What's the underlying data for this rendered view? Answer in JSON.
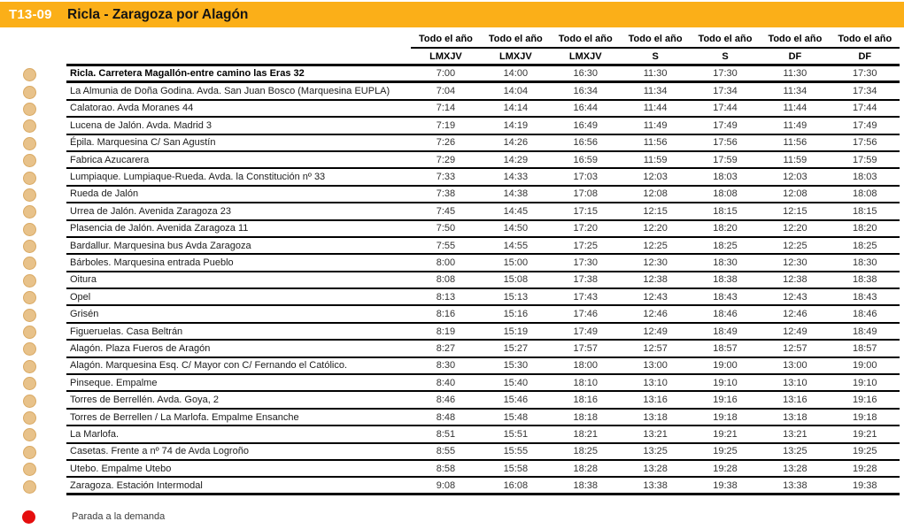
{
  "header": {
    "route_code": "T13-09",
    "title": "Ricla - Zaragoza por Alagón"
  },
  "timetable": {
    "column_headers": [
      {
        "season": "Todo el año",
        "days": "LMXJV"
      },
      {
        "season": "Todo el año",
        "days": "LMXJV"
      },
      {
        "season": "Todo el año",
        "days": "LMXJV"
      },
      {
        "season": "Todo el año",
        "days": "S"
      },
      {
        "season": "Todo el año",
        "days": "S"
      },
      {
        "season": "Todo el año",
        "days": "DF"
      },
      {
        "season": "Todo el año",
        "days": "DF"
      }
    ],
    "rows": [
      {
        "stop": "Ricla. Carretera Magallón-entre camino las Eras 32",
        "emphasis": true,
        "times": [
          "7:00",
          "14:00",
          "16:30",
          "11:30",
          "17:30",
          "11:30",
          "17:30"
        ]
      },
      {
        "stop": "La Almunia de Doña Godina.  Avda. San Juan Bosco (Marquesina EUPLA)",
        "emphasis": false,
        "times": [
          "7:04",
          "14:04",
          "16:34",
          "11:34",
          "17:34",
          "11:34",
          "17:34"
        ]
      },
      {
        "stop": "Calatorao. Avda Moranes 44",
        "emphasis": false,
        "times": [
          "7:14",
          "14:14",
          "16:44",
          "11:44",
          "17:44",
          "11:44",
          "17:44"
        ]
      },
      {
        "stop": "Lucena de Jalón. Avda. Madrid 3",
        "emphasis": false,
        "times": [
          "7:19",
          "14:19",
          "16:49",
          "11:49",
          "17:49",
          "11:49",
          "17:49"
        ]
      },
      {
        "stop": "Épila. Marquesina C/ San Agustín",
        "emphasis": false,
        "times": [
          "7:26",
          "14:26",
          "16:56",
          "11:56",
          "17:56",
          "11:56",
          "17:56"
        ]
      },
      {
        "stop": "Fabrica Azucarera",
        "emphasis": false,
        "times": [
          "7:29",
          "14:29",
          "16:59",
          "11:59",
          "17:59",
          "11:59",
          "17:59"
        ]
      },
      {
        "stop": "Lumpiaque. Lumpiaque-Rueda. Avda. la Constitución nº 33",
        "emphasis": false,
        "times": [
          "7:33",
          "14:33",
          "17:03",
          "12:03",
          "18:03",
          "12:03",
          "18:03"
        ]
      },
      {
        "stop": "Rueda de Jalón",
        "emphasis": false,
        "times": [
          "7:38",
          "14:38",
          "17:08",
          "12:08",
          "18:08",
          "12:08",
          "18:08"
        ]
      },
      {
        "stop": "Urrea de Jalón. Avenida Zaragoza 23",
        "emphasis": false,
        "times": [
          "7:45",
          "14:45",
          "17:15",
          "12:15",
          "18:15",
          "12:15",
          "18:15"
        ]
      },
      {
        "stop": "Plasencia de Jalón. Avenida Zaragoza 11",
        "emphasis": false,
        "times": [
          "7:50",
          "14:50",
          "17:20",
          "12:20",
          "18:20",
          "12:20",
          "18:20"
        ]
      },
      {
        "stop": "Bardallur. Marquesina bus Avda Zaragoza",
        "emphasis": false,
        "times": [
          "7:55",
          "14:55",
          "17:25",
          "12:25",
          "18:25",
          "12:25",
          "18:25"
        ]
      },
      {
        "stop": "Bárboles. Marquesina entrada Pueblo",
        "emphasis": false,
        "times": [
          "8:00",
          "15:00",
          "17:30",
          "12:30",
          "18:30",
          "12:30",
          "18:30"
        ]
      },
      {
        "stop": "Oitura",
        "emphasis": false,
        "times": [
          "8:08",
          "15:08",
          "17:38",
          "12:38",
          "18:38",
          "12:38",
          "18:38"
        ]
      },
      {
        "stop": "Opel",
        "emphasis": false,
        "times": [
          "8:13",
          "15:13",
          "17:43",
          "12:43",
          "18:43",
          "12:43",
          "18:43"
        ]
      },
      {
        "stop": "Grisén",
        "emphasis": false,
        "times": [
          "8:16",
          "15:16",
          "17:46",
          "12:46",
          "18:46",
          "12:46",
          "18:46"
        ]
      },
      {
        "stop": "Figueruelas. Casa Beltrán",
        "emphasis": false,
        "times": [
          "8:19",
          "15:19",
          "17:49",
          "12:49",
          "18:49",
          "12:49",
          "18:49"
        ]
      },
      {
        "stop": "Alagón. Plaza Fueros de Aragón",
        "emphasis": false,
        "times": [
          "8:27",
          "15:27",
          "17:57",
          "12:57",
          "18:57",
          "12:57",
          "18:57"
        ]
      },
      {
        "stop": "Alagón. Marquesina Esq. C/ Mayor  con C/ Fernando el Católico.",
        "emphasis": false,
        "times": [
          "8:30",
          "15:30",
          "18:00",
          "13:00",
          "19:00",
          "13:00",
          "19:00"
        ]
      },
      {
        "stop": "Pinseque. Empalme",
        "emphasis": false,
        "times": [
          "8:40",
          "15:40",
          "18:10",
          "13:10",
          "19:10",
          "13:10",
          "19:10"
        ]
      },
      {
        "stop": "Torres de Berrellén. Avda. Goya, 2",
        "emphasis": false,
        "times": [
          "8:46",
          "15:46",
          "18:16",
          "13:16",
          "19:16",
          "13:16",
          "19:16"
        ]
      },
      {
        "stop": "Torres de Berrellen / La Marlofa. Empalme Ensanche",
        "emphasis": false,
        "times": [
          "8:48",
          "15:48",
          "18:18",
          "13:18",
          "19:18",
          "13:18",
          "19:18"
        ]
      },
      {
        "stop": "La Marlofa.",
        "emphasis": false,
        "times": [
          "8:51",
          "15:51",
          "18:21",
          "13:21",
          "19:21",
          "13:21",
          "19:21"
        ]
      },
      {
        "stop": "Casetas. Frente a nº 74 de Avda Logroño",
        "emphasis": false,
        "times": [
          "8:55",
          "15:55",
          "18:25",
          "13:25",
          "19:25",
          "13:25",
          "19:25"
        ]
      },
      {
        "stop": "Utebo. Empalme Utebo",
        "emphasis": false,
        "times": [
          "8:58",
          "15:58",
          "18:28",
          "13:28",
          "19:28",
          "13:28",
          "19:28"
        ]
      },
      {
        "stop": "Zaragoza.  Estación Intermodal",
        "emphasis": false,
        "times": [
          "9:08",
          "16:08",
          "18:38",
          "13:38",
          "19:38",
          "13:38",
          "19:38"
        ]
      }
    ]
  },
  "legend": {
    "label": "Parada a la demanda"
  },
  "colors": {
    "header_bar": "#FBAF18",
    "row_dot": "#E8C28A",
    "row_dot_edge": "#D9A963",
    "demand_dot": "#E50E0E",
    "table_line": "#000000"
  }
}
